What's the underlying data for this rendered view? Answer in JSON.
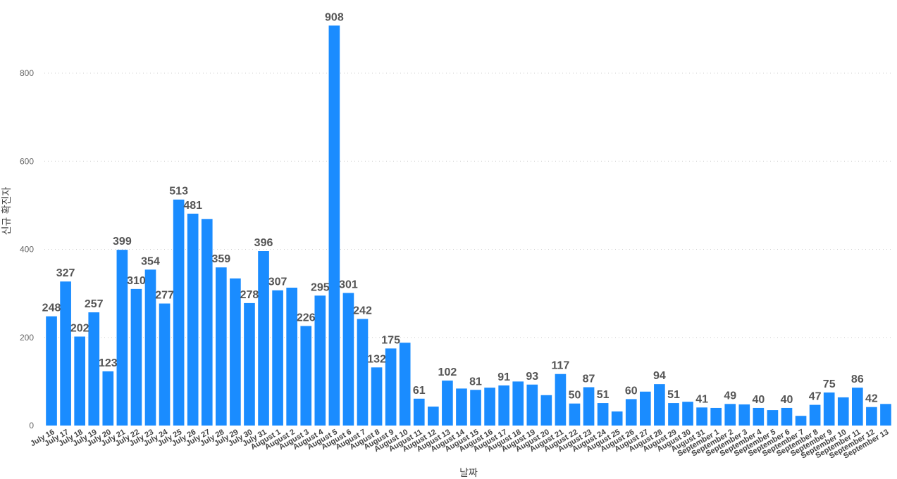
{
  "chart_data": {
    "type": "bar",
    "xlabel": "날짜",
    "ylabel": "신규 확진자",
    "ylim": [
      0,
      950
    ],
    "yticks": [
      0,
      200,
      400,
      600,
      800
    ],
    "grid": true,
    "bar_color": "#1a8cff",
    "categories": [
      "July 16",
      "July 17",
      "July 18",
      "July 19",
      "July 20",
      "July 21",
      "July 22",
      "July 23",
      "July 24",
      "July 25",
      "July 26",
      "July 27",
      "July 28",
      "July 29",
      "July 30",
      "July 31",
      "August 1",
      "August 2",
      "August 3",
      "August 4",
      "August 5",
      "August 6",
      "August 7",
      "August 8",
      "August 9",
      "August 10",
      "August 11",
      "August 12",
      "August 13",
      "August 14",
      "August 15",
      "August 16",
      "August 17",
      "August 18",
      "August 19",
      "August 20",
      "August 21",
      "August 22",
      "August 23",
      "August 24",
      "August 25",
      "August 26",
      "August 27",
      "August 28",
      "August 29",
      "August 30",
      "August 31",
      "September 1",
      "September 2",
      "September 3",
      "September 4",
      "September 5",
      "September 6",
      "September 7",
      "September 8",
      "September 9",
      "September 10",
      "September 11",
      "September 12",
      "September 13"
    ],
    "values": [
      248,
      327,
      202,
      257,
      123,
      399,
      310,
      354,
      277,
      513,
      481,
      469,
      359,
      334,
      278,
      396,
      307,
      313,
      226,
      295,
      908,
      301,
      242,
      132,
      175,
      188,
      61,
      43,
      102,
      84,
      81,
      86,
      91,
      100,
      93,
      69,
      117,
      50,
      87,
      51,
      32,
      60,
      77,
      94,
      51,
      54,
      41,
      40,
      49,
      48,
      40,
      35,
      40,
      22,
      47,
      75,
      64,
      86,
      42,
      49
    ],
    "labels": [
      "248",
      "327",
      "202",
      "257",
      "123",
      "399",
      "310",
      "354",
      "277",
      "513",
      "481",
      "",
      "359",
      "",
      "278",
      "396",
      "307",
      "",
      "226",
      "295",
      "908",
      "301",
      "242",
      "132",
      "175",
      "",
      "61",
      "",
      "102",
      "",
      "81",
      "",
      "91",
      "",
      "93",
      "",
      "117",
      "50",
      "87",
      "51",
      "",
      "60",
      "",
      "94",
      "51",
      "",
      "41",
      "",
      "49",
      "",
      "40",
      "",
      "40",
      "",
      "47",
      "75",
      "",
      "86",
      "42",
      ""
    ]
  }
}
